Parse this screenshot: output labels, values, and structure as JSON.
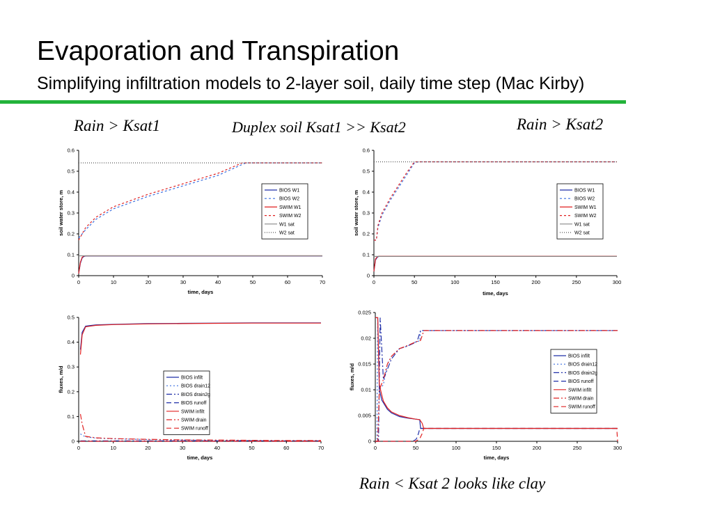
{
  "slide": {
    "title": "Evaporation and Transpiration",
    "subtitle": "Simplifying infiltration models to 2-layer soil, daily time step (Mac Kirby)",
    "accent_color": "#22b33a"
  },
  "captions": {
    "left": "Rain > Ksat1",
    "center": "Duplex soil Ksat1 >> Ksat2",
    "right": "Rain > Ksat2",
    "bottom": "Rain < Ksat 2 looks like clay"
  },
  "chart_data": [
    {
      "type": "line",
      "xlabel": "time, days",
      "ylabel": "soil water store, m",
      "xlim": [
        0,
        70
      ],
      "ylim": [
        0,
        0.6
      ],
      "xticks": [
        0,
        10,
        20,
        30,
        40,
        50,
        60,
        70
      ],
      "yticks": [
        0,
        0.1,
        0.2,
        0.3,
        0.4,
        0.5,
        0.6
      ],
      "legend_position": "center-right",
      "series": [
        {
          "name": "BIOS W1",
          "color": "#1f2ea8",
          "dash": "solid",
          "x": [
            0,
            0.5,
            1,
            1.5,
            2,
            5,
            10,
            20,
            30,
            40,
            50,
            60,
            70
          ],
          "y": [
            0.01,
            0.06,
            0.085,
            0.092,
            0.094,
            0.094,
            0.094,
            0.094,
            0.094,
            0.094,
            0.094,
            0.094,
            0.094
          ]
        },
        {
          "name": "BIOS W2",
          "color": "#3a6fe0",
          "dash": "3,3",
          "x": [
            0,
            1,
            2,
            5,
            10,
            20,
            30,
            40,
            48,
            50,
            60,
            70
          ],
          "y": [
            0.18,
            0.2,
            0.22,
            0.27,
            0.32,
            0.38,
            0.43,
            0.48,
            0.54,
            0.54,
            0.54,
            0.54
          ]
        },
        {
          "name": "SWIM W1",
          "color": "#e02020",
          "dash": "solid",
          "x": [
            0,
            0.5,
            1,
            1.5,
            2,
            5,
            10,
            20,
            30,
            40,
            50,
            60,
            70
          ],
          "y": [
            0.01,
            0.065,
            0.088,
            0.094,
            0.095,
            0.095,
            0.095,
            0.095,
            0.095,
            0.095,
            0.095,
            0.095,
            0.095
          ]
        },
        {
          "name": "SWIM W2",
          "color": "#e02020",
          "dash": "3,3",
          "x": [
            0,
            1,
            2,
            5,
            10,
            20,
            30,
            40,
            47,
            50,
            60,
            70
          ],
          "y": [
            0.17,
            0.2,
            0.23,
            0.28,
            0.33,
            0.39,
            0.44,
            0.49,
            0.54,
            0.54,
            0.54,
            0.54
          ]
        },
        {
          "name": "W1 sat",
          "color": "#888888",
          "dash": "solid",
          "x": [
            0,
            70
          ],
          "y": [
            0.095,
            0.095
          ]
        },
        {
          "name": "W2 sat",
          "color": "#555555",
          "dash": "1,2",
          "x": [
            0,
            70
          ],
          "y": [
            0.54,
            0.54
          ]
        }
      ]
    },
    {
      "type": "line",
      "xlabel": "time, days",
      "ylabel": "soil water store, m",
      "xlim": [
        0,
        300
      ],
      "ylim": [
        0,
        0.6
      ],
      "xticks": [
        0,
        50,
        100,
        150,
        200,
        250,
        300
      ],
      "yticks": [
        0,
        0.1,
        0.2,
        0.3,
        0.4,
        0.5,
        0.6
      ],
      "legend_position": "center-right",
      "series": [
        {
          "name": "BIOS W1",
          "color": "#1f2ea8",
          "dash": "solid",
          "x": [
            0,
            2,
            4,
            6,
            10,
            50,
            100,
            200,
            300
          ],
          "y": [
            0.02,
            0.075,
            0.088,
            0.092,
            0.092,
            0.092,
            0.092,
            0.092,
            0.092
          ]
        },
        {
          "name": "BIOS W2",
          "color": "#3a6fe0",
          "dash": "3,3",
          "x": [
            0,
            3,
            5,
            10,
            20,
            30,
            40,
            50,
            55,
            100,
            200,
            300
          ],
          "y": [
            0.17,
            0.17,
            0.23,
            0.29,
            0.36,
            0.42,
            0.48,
            0.54,
            0.545,
            0.545,
            0.545,
            0.545
          ]
        },
        {
          "name": "SWIM W1",
          "color": "#e02020",
          "dash": "solid",
          "x": [
            0,
            2,
            4,
            6,
            10,
            50,
            100,
            200,
            300
          ],
          "y": [
            0.02,
            0.08,
            0.09,
            0.093,
            0.093,
            0.093,
            0.093,
            0.093,
            0.093
          ]
        },
        {
          "name": "SWIM W2",
          "color": "#e02020",
          "dash": "3,3",
          "x": [
            0,
            3,
            5,
            10,
            20,
            30,
            40,
            50,
            55,
            100,
            200,
            300
          ],
          "y": [
            0.17,
            0.17,
            0.24,
            0.3,
            0.37,
            0.43,
            0.49,
            0.545,
            0.545,
            0.545,
            0.545,
            0.545
          ]
        },
        {
          "name": "W1 sat",
          "color": "#888888",
          "dash": "solid",
          "x": [
            0,
            300
          ],
          "y": [
            0.092,
            0.092
          ]
        },
        {
          "name": "W2 sat",
          "color": "#555555",
          "dash": "1,2",
          "x": [
            0,
            300
          ],
          "y": [
            0.545,
            0.545
          ]
        }
      ]
    },
    {
      "type": "line",
      "xlabel": "time, days",
      "ylabel": "fluxes, m/d",
      "xlim": [
        0,
        70
      ],
      "ylim": [
        0,
        0.5
      ],
      "xticks": [
        0,
        10,
        20,
        30,
        40,
        50,
        60,
        70
      ],
      "yticks": [
        0,
        0.1,
        0.2,
        0.3,
        0.4,
        0.5
      ],
      "legend_position": "center-right",
      "series": [
        {
          "name": "BIOS infilt",
          "color": "#1f2ea8",
          "dash": "solid",
          "x": [
            0.5,
            1,
            2,
            5,
            10,
            20,
            30,
            40,
            50,
            60,
            70
          ],
          "y": [
            0.37,
            0.44,
            0.465,
            0.47,
            0.472,
            0.475,
            0.476,
            0.477,
            0.478,
            0.478,
            0.478
          ]
        },
        {
          "name": "BIOS drain12",
          "color": "#3a6fe0",
          "dash": "2,3",
          "x": [
            0.5,
            1,
            2,
            5,
            10,
            20,
            30,
            40,
            50,
            60,
            70
          ],
          "y": [
            0.03,
            0.025,
            0.018,
            0.013,
            0.01,
            0.007,
            0.005,
            0.004,
            0.003,
            0.002,
            0.002
          ]
        },
        {
          "name": "BIOS drain2g",
          "color": "#1f2ea8",
          "dash": "8,3,2,3",
          "x": [
            0.5,
            70
          ],
          "y": [
            0.002,
            0.002
          ]
        },
        {
          "name": "BIOS runoff",
          "color": "#1f2ea8",
          "dash": "7,4",
          "x": [
            0.5,
            70
          ],
          "y": [
            0,
            0
          ]
        },
        {
          "name": "SWIM infilt",
          "color": "#e02020",
          "dash": "solid",
          "x": [
            0.5,
            1,
            2,
            5,
            10,
            20,
            30,
            40,
            50,
            60,
            70
          ],
          "y": [
            0.35,
            0.43,
            0.462,
            0.468,
            0.471,
            0.474,
            0.475,
            0.476,
            0.477,
            0.477,
            0.477
          ]
        },
        {
          "name": "SWIM drain",
          "color": "#e02020",
          "dash": "8,3,2,3",
          "x": [
            0.5,
            1,
            2,
            5,
            10,
            20,
            30,
            40,
            50,
            60,
            70
          ],
          "y": [
            0.11,
            0.07,
            0.02,
            0.014,
            0.011,
            0.008,
            0.006,
            0.005,
            0.004,
            0.003,
            0.003
          ]
        },
        {
          "name": "SWIM runoff",
          "color": "#e02020",
          "dash": "7,4",
          "x": [
            0.5,
            70
          ],
          "y": [
            0,
            0
          ]
        }
      ]
    },
    {
      "type": "line",
      "xlabel": "time, days",
      "ylabel": "fluxes, m/d",
      "xlim": [
        0,
        300
      ],
      "ylim": [
        0,
        0.025
      ],
      "xticks": [
        0,
        50,
        100,
        150,
        200,
        250,
        300
      ],
      "yticks": [
        0,
        0.005,
        0.01,
        0.015,
        0.02,
        0.025
      ],
      "legend_position": "center-right",
      "series": [
        {
          "name": "BIOS infilt",
          "color": "#1f2ea8",
          "dash": "solid",
          "x": [
            0,
            3,
            5,
            8,
            10,
            15,
            20,
            30,
            40,
            50,
            55,
            56,
            60,
            100,
            200,
            300
          ],
          "y": [
            0.024,
            0.024,
            0.01,
            0.008,
            0.0075,
            0.0062,
            0.0055,
            0.0048,
            0.0045,
            0.0043,
            0.0042,
            0.0025,
            0.0025,
            0.0025,
            0.0025,
            0.0025
          ]
        },
        {
          "name": "BIOS drain12",
          "color": "#3a6fe0",
          "dash": "2,3",
          "x": [
            0,
            2,
            3,
            5,
            10,
            15,
            20,
            30,
            40,
            50,
            55,
            56,
            60,
            100,
            200,
            300
          ],
          "y": [
            0,
            0,
            0.024,
            0.01,
            0.011,
            0.015,
            0.0165,
            0.018,
            0.0185,
            0.0193,
            0.0195,
            0.0215,
            0.0215,
            0.0215,
            0.0215,
            0.0215
          ]
        },
        {
          "name": "BIOS drain2g",
          "color": "#1f2ea8",
          "dash": "8,3,2,3",
          "x": [
            0,
            4,
            6,
            10,
            20,
            30,
            40,
            50,
            52,
            56,
            58,
            100,
            200,
            300
          ],
          "y": [
            0,
            0,
            0.024,
            0.012,
            0.016,
            0.018,
            0.0185,
            0.0192,
            0.0195,
            0.0215,
            0.0215,
            0.0215,
            0.0215,
            0.0215
          ]
        },
        {
          "name": "BIOS runoff",
          "color": "#1f2ea8",
          "dash": "7,4",
          "x": [
            0,
            45,
            50,
            52,
            54,
            55,
            100,
            200,
            300
          ],
          "y": [
            0,
            0,
            0.0003,
            0.0008,
            0.0018,
            0.0025,
            0.0025,
            0.0025,
            0.0025
          ]
        },
        {
          "name": "SWIM infilt",
          "color": "#e02020",
          "dash": "solid",
          "x": [
            0,
            3,
            5,
            8,
            10,
            15,
            20,
            30,
            40,
            50,
            55,
            58,
            60,
            62,
            100,
            200,
            300
          ],
          "y": [
            0.024,
            0.024,
            0.011,
            0.009,
            0.0078,
            0.0065,
            0.0057,
            0.005,
            0.0046,
            0.0043,
            0.0042,
            0.0035,
            0.0025,
            0.0025,
            0.0025,
            0.0025,
            0.0025
          ]
        },
        {
          "name": "SWIM drain",
          "color": "#e02020",
          "dash": "8,3,2,3",
          "x": [
            0,
            3,
            5,
            10,
            15,
            20,
            30,
            40,
            50,
            56,
            58,
            60,
            62,
            100,
            200,
            300
          ],
          "y": [
            0,
            0,
            0.01,
            0.012,
            0.015,
            0.0165,
            0.018,
            0.0186,
            0.0193,
            0.0196,
            0.0205,
            0.0215,
            0.0215,
            0.0215,
            0.0215,
            0.0215
          ]
        },
        {
          "name": "SWIM runoff",
          "color": "#e02020",
          "dash": "7,4",
          "x": [
            0,
            50,
            55,
            58,
            60,
            100,
            200,
            299,
            300
          ],
          "y": [
            0,
            0,
            0.0005,
            0.0015,
            0.0025,
            0.0025,
            0.0025,
            0.0025,
            0
          ]
        }
      ]
    }
  ]
}
